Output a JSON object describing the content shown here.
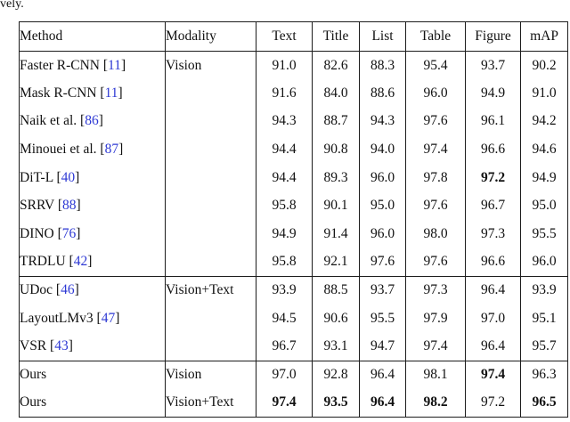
{
  "page": {
    "caption_fragment": "vely."
  },
  "colors": {
    "citation_blue": "#2d38d4",
    "rule_black": "#1c1c1c"
  },
  "table": {
    "headers": [
      "Method",
      "Modality",
      "Text",
      "Title",
      "List",
      "Table",
      "Figure",
      "mAP"
    ],
    "rows": [
      {
        "method": "Faster R-CNN",
        "cite": "11",
        "modality": "Vision",
        "values": [
          "91.0",
          "82.6",
          "88.3",
          "95.4",
          "93.7",
          "90.2"
        ],
        "bold": [
          false,
          false,
          false,
          false,
          false,
          false
        ],
        "separator_after": false
      },
      {
        "method": "Mask R-CNN",
        "cite": "11",
        "modality": "",
        "values": [
          "91.6",
          "84.0",
          "88.6",
          "96.0",
          "94.9",
          "91.0"
        ],
        "bold": [
          false,
          false,
          false,
          false,
          false,
          false
        ],
        "separator_after": false
      },
      {
        "method": "Naik et al.",
        "cite": "86",
        "modality": "",
        "values": [
          "94.3",
          "88.7",
          "94.3",
          "97.6",
          "96.1",
          "94.2"
        ],
        "bold": [
          false,
          false,
          false,
          false,
          false,
          false
        ],
        "separator_after": false
      },
      {
        "method": "Minouei et al.",
        "cite": "87",
        "modality": "",
        "values": [
          "94.4",
          "90.8",
          "94.0",
          "97.4",
          "96.6",
          "94.6"
        ],
        "bold": [
          false,
          false,
          false,
          false,
          false,
          false
        ],
        "separator_after": false
      },
      {
        "method": "DiT-L",
        "cite": "40",
        "modality": "",
        "values": [
          "94.4",
          "89.3",
          "96.0",
          "97.8",
          "97.2",
          "94.9"
        ],
        "bold": [
          false,
          false,
          false,
          false,
          true,
          false
        ],
        "separator_after": false
      },
      {
        "method": "SRRV",
        "cite": "88",
        "modality": "",
        "values": [
          "95.8",
          "90.1",
          "95.0",
          "97.6",
          "96.7",
          "95.0"
        ],
        "bold": [
          false,
          false,
          false,
          false,
          false,
          false
        ],
        "separator_after": false
      },
      {
        "method": "DINO",
        "cite": "76",
        "modality": "",
        "values": [
          "94.9",
          "91.4",
          "96.0",
          "98.0",
          "97.3",
          "95.5"
        ],
        "bold": [
          false,
          false,
          false,
          false,
          false,
          false
        ],
        "separator_after": false
      },
      {
        "method": "TRDLU",
        "cite": "42",
        "modality": "",
        "values": [
          "95.8",
          "92.1",
          "97.6",
          "97.6",
          "96.6",
          "96.0"
        ],
        "bold": [
          false,
          false,
          false,
          false,
          false,
          false
        ],
        "separator_after": true
      },
      {
        "method": "UDoc",
        "cite": "46",
        "modality": "Vision+Text",
        "values": [
          "93.9",
          "88.5",
          "93.7",
          "97.3",
          "96.4",
          "93.9"
        ],
        "bold": [
          false,
          false,
          false,
          false,
          false,
          false
        ],
        "separator_after": false
      },
      {
        "method": "LayoutLMv3",
        "cite": "47",
        "modality": "",
        "values": [
          "94.5",
          "90.6",
          "95.5",
          "97.9",
          "97.0",
          "95.1"
        ],
        "bold": [
          false,
          false,
          false,
          false,
          false,
          false
        ],
        "separator_after": false
      },
      {
        "method": "VSR",
        "cite": "43",
        "modality": "",
        "values": [
          "96.7",
          "93.1",
          "94.7",
          "97.4",
          "96.4",
          "95.7"
        ],
        "bold": [
          false,
          false,
          false,
          false,
          false,
          false
        ],
        "separator_after": true
      },
      {
        "method": "Ours",
        "cite": null,
        "modality": "Vision",
        "values": [
          "97.0",
          "92.8",
          "96.4",
          "98.1",
          "97.4",
          "96.3"
        ],
        "bold": [
          false,
          false,
          false,
          false,
          true,
          false
        ],
        "separator_after": false
      },
      {
        "method": "Ours",
        "cite": null,
        "modality": "Vision+Text",
        "values": [
          "97.4",
          "93.5",
          "96.4",
          "98.2",
          "97.2",
          "96.5"
        ],
        "bold": [
          true,
          true,
          true,
          true,
          false,
          true
        ],
        "separator_after": false
      }
    ]
  }
}
